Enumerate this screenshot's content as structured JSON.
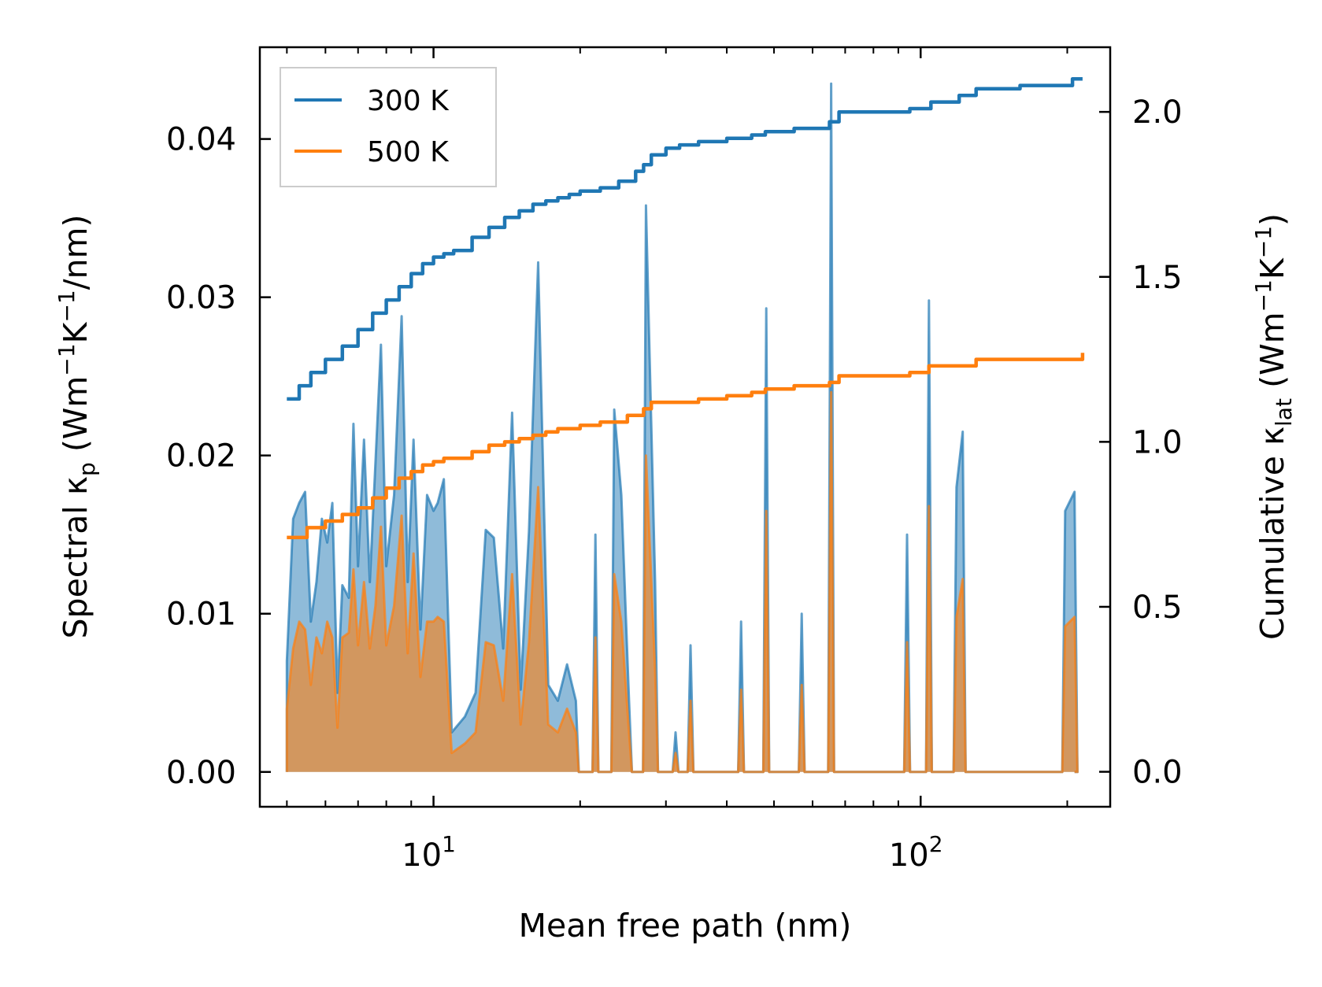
{
  "chart_data": {
    "type": "line",
    "x_scale": "log",
    "xlabel": "Mean free path (nm)",
    "ylabel_left": {
      "main": "Spectral κ",
      "sub": "p",
      "unit_pre": " (Wm",
      "sup1": "−1",
      "mid": "K",
      "sup2": "−1",
      "tail": "/nm)"
    },
    "ylabel_right": {
      "main": "Cumulative κ",
      "sub": "lat",
      "unit_pre": " (Wm",
      "sup1": "−1",
      "mid": "K",
      "sup2": "−1",
      "tail": ")"
    },
    "xlim": [
      4.4,
      245
    ],
    "ylim_left": [
      -0.0022,
      0.0458
    ],
    "ylim_right": [
      -0.106,
      2.196
    ],
    "x_ticks": [
      {
        "value": 10,
        "label": "10",
        "exp": "1"
      },
      {
        "value": 100,
        "label": "10",
        "exp": "2"
      }
    ],
    "y_ticks_left": [
      {
        "value": 0.0,
        "label": "0.00"
      },
      {
        "value": 0.01,
        "label": "0.01"
      },
      {
        "value": 0.02,
        "label": "0.02"
      },
      {
        "value": 0.03,
        "label": "0.03"
      },
      {
        "value": 0.04,
        "label": "0.04"
      }
    ],
    "y_ticks_right": [
      {
        "value": 0.0,
        "label": "0.0"
      },
      {
        "value": 0.5,
        "label": "0.5"
      },
      {
        "value": 1.0,
        "label": "1.0"
      },
      {
        "value": 1.5,
        "label": "1.5"
      },
      {
        "value": 2.0,
        "label": "2.0"
      }
    ],
    "legend": {
      "placement": "top-left",
      "entries": [
        {
          "label": "300 K",
          "color": "#1f77b4"
        },
        {
          "label": "500 K",
          "color": "#ff7f0e"
        }
      ]
    },
    "series": [
      {
        "name": "300 K",
        "color": "#1f77b4",
        "cumulative": [
          [
            5.0,
            1.13
          ],
          [
            5.3,
            1.17
          ],
          [
            5.6,
            1.21
          ],
          [
            6.0,
            1.25
          ],
          [
            6.5,
            1.29
          ],
          [
            7.0,
            1.34
          ],
          [
            7.5,
            1.39
          ],
          [
            8.0,
            1.43
          ],
          [
            8.5,
            1.47
          ],
          [
            9.0,
            1.51
          ],
          [
            9.5,
            1.54
          ],
          [
            10.0,
            1.56
          ],
          [
            10.5,
            1.57
          ],
          [
            11.0,
            1.58
          ],
          [
            12.0,
            1.62
          ],
          [
            13.0,
            1.65
          ],
          [
            14.0,
            1.68
          ],
          [
            15.0,
            1.7
          ],
          [
            16.0,
            1.72
          ],
          [
            17.0,
            1.73
          ],
          [
            18.0,
            1.74
          ],
          [
            19.0,
            1.75
          ],
          [
            20.0,
            1.76
          ],
          [
            22.0,
            1.77
          ],
          [
            24.0,
            1.79
          ],
          [
            26.0,
            1.82
          ],
          [
            27.0,
            1.84
          ],
          [
            28.0,
            1.87
          ],
          [
            30.0,
            1.89
          ],
          [
            32.0,
            1.9
          ],
          [
            35.0,
            1.91
          ],
          [
            40.0,
            1.92
          ],
          [
            45.0,
            1.93
          ],
          [
            48.0,
            1.94
          ],
          [
            55.0,
            1.95
          ],
          [
            65.0,
            1.97
          ],
          [
            68.0,
            2.0
          ],
          [
            80.0,
            2.0
          ],
          [
            95.0,
            2.01
          ],
          [
            105.0,
            2.03
          ],
          [
            120.0,
            2.05
          ],
          [
            130.0,
            2.07
          ],
          [
            160.0,
            2.08
          ],
          [
            200.0,
            2.08
          ],
          [
            205.0,
            2.1
          ],
          [
            215.0,
            2.1
          ]
        ],
        "spectral_peaks": [
          [
            5.0,
            0.007
          ],
          [
            5.15,
            0.016
          ],
          [
            5.3,
            0.017
          ],
          [
            5.45,
            0.0177
          ],
          [
            5.6,
            0.0095
          ],
          [
            5.75,
            0.012
          ],
          [
            5.9,
            0.016
          ],
          [
            6.05,
            0.0145
          ],
          [
            6.2,
            0.017
          ],
          [
            6.35,
            0.005
          ],
          [
            6.5,
            0.0118
          ],
          [
            6.7,
            0.011
          ],
          [
            6.85,
            0.022
          ],
          [
            7.0,
            0.013
          ],
          [
            7.2,
            0.021
          ],
          [
            7.4,
            0.012
          ],
          [
            7.6,
            0.0195
          ],
          [
            7.8,
            0.027
          ],
          [
            8.0,
            0.013
          ],
          [
            8.3,
            0.0175
          ],
          [
            8.6,
            0.0288
          ],
          [
            8.85,
            0.012
          ],
          [
            9.1,
            0.021
          ],
          [
            9.4,
            0.009
          ],
          [
            9.7,
            0.0175
          ],
          [
            10.0,
            0.0165
          ],
          [
            10.2,
            0.017
          ],
          [
            10.5,
            0.0185
          ],
          [
            10.9,
            0.0025
          ],
          [
            11.6,
            0.0035
          ],
          [
            12.2,
            0.005
          ],
          [
            12.8,
            0.0153
          ],
          [
            13.3,
            0.0148
          ],
          [
            13.9,
            0.0078
          ],
          [
            14.5,
            0.0227
          ],
          [
            15.1,
            0.0052
          ],
          [
            15.7,
            0.0152
          ],
          [
            16.4,
            0.0322
          ],
          [
            17.2,
            0.0055
          ],
          [
            18.0,
            0.0045
          ],
          [
            18.8,
            0.0068
          ],
          [
            19.6,
            0.0045
          ],
          [
            21.5,
            0.015
          ],
          [
            23.5,
            0.0229
          ],
          [
            24.3,
            0.0175
          ],
          [
            25.2,
            0.0045
          ],
          [
            27.3,
            0.0358
          ],
          [
            28.5,
            0.012
          ],
          [
            31.4,
            0.0025
          ],
          [
            33.7,
            0.008
          ],
          [
            42.8,
            0.0095
          ],
          [
            48.2,
            0.0293
          ],
          [
            57.0,
            0.01
          ],
          [
            65.5,
            0.0435
          ],
          [
            93.8,
            0.015
          ],
          [
            104.0,
            0.0298
          ],
          [
            118.5,
            0.018
          ],
          [
            122.0,
            0.0215
          ],
          [
            198.0,
            0.0165
          ],
          [
            207.0,
            0.0177
          ]
        ]
      },
      {
        "name": "500 K",
        "color": "#ff7f0e",
        "cumulative": [
          [
            5.0,
            0.71
          ],
          [
            5.5,
            0.74
          ],
          [
            6.0,
            0.76
          ],
          [
            6.5,
            0.78
          ],
          [
            7.0,
            0.8
          ],
          [
            7.5,
            0.83
          ],
          [
            8.0,
            0.86
          ],
          [
            8.5,
            0.89
          ],
          [
            9.0,
            0.91
          ],
          [
            9.5,
            0.93
          ],
          [
            10.0,
            0.94
          ],
          [
            10.5,
            0.95
          ],
          [
            11.0,
            0.95
          ],
          [
            12.0,
            0.97
          ],
          [
            13.0,
            0.99
          ],
          [
            14.0,
            1.0
          ],
          [
            15.0,
            1.01
          ],
          [
            16.0,
            1.02
          ],
          [
            17.0,
            1.03
          ],
          [
            18.0,
            1.04
          ],
          [
            20.0,
            1.05
          ],
          [
            22.0,
            1.06
          ],
          [
            25.0,
            1.08
          ],
          [
            27.0,
            1.1
          ],
          [
            28.0,
            1.12
          ],
          [
            32.0,
            1.12
          ],
          [
            35.0,
            1.13
          ],
          [
            40.0,
            1.14
          ],
          [
            45.0,
            1.15
          ],
          [
            48.0,
            1.16
          ],
          [
            55.0,
            1.17
          ],
          [
            65.0,
            1.18
          ],
          [
            68.0,
            1.2
          ],
          [
            80.0,
            1.2
          ],
          [
            95.0,
            1.21
          ],
          [
            104.0,
            1.23
          ],
          [
            120.0,
            1.23
          ],
          [
            130.0,
            1.25
          ],
          [
            200.0,
            1.25
          ],
          [
            215.0,
            1.27
          ]
        ],
        "spectral_peaks": [
          [
            5.0,
            0.004
          ],
          [
            5.15,
            0.0078
          ],
          [
            5.3,
            0.0095
          ],
          [
            5.45,
            0.009
          ],
          [
            5.6,
            0.0055
          ],
          [
            5.75,
            0.0085
          ],
          [
            5.9,
            0.0075
          ],
          [
            6.05,
            0.0095
          ],
          [
            6.2,
            0.0085
          ],
          [
            6.35,
            0.0028
          ],
          [
            6.5,
            0.0085
          ],
          [
            6.7,
            0.0088
          ],
          [
            6.85,
            0.0128
          ],
          [
            7.0,
            0.008
          ],
          [
            7.2,
            0.012
          ],
          [
            7.4,
            0.0078
          ],
          [
            7.6,
            0.0105
          ],
          [
            7.8,
            0.0155
          ],
          [
            8.0,
            0.008
          ],
          [
            8.3,
            0.0105
          ],
          [
            8.6,
            0.0162
          ],
          [
            8.85,
            0.0075
          ],
          [
            9.1,
            0.0138
          ],
          [
            9.4,
            0.006
          ],
          [
            9.7,
            0.0095
          ],
          [
            10.0,
            0.0095
          ],
          [
            10.2,
            0.0098
          ],
          [
            10.5,
            0.0095
          ],
          [
            10.9,
            0.0012
          ],
          [
            11.6,
            0.0018
          ],
          [
            12.2,
            0.0025
          ],
          [
            12.8,
            0.0082
          ],
          [
            13.3,
            0.008
          ],
          [
            13.9,
            0.0045
          ],
          [
            14.5,
            0.0125
          ],
          [
            15.1,
            0.003
          ],
          [
            15.7,
            0.0082
          ],
          [
            16.4,
            0.018
          ],
          [
            17.2,
            0.003
          ],
          [
            18.0,
            0.0025
          ],
          [
            18.8,
            0.004
          ],
          [
            19.6,
            0.0025
          ],
          [
            21.5,
            0.0085
          ],
          [
            23.5,
            0.0125
          ],
          [
            24.3,
            0.0095
          ],
          [
            25.2,
            0.0025
          ],
          [
            27.3,
            0.02
          ],
          [
            28.5,
            0.0065
          ],
          [
            31.4,
            0.0012
          ],
          [
            33.7,
            0.0045
          ],
          [
            42.8,
            0.0052
          ],
          [
            48.2,
            0.0165
          ],
          [
            57.0,
            0.0055
          ],
          [
            65.5,
            0.024
          ],
          [
            93.8,
            0.0082
          ],
          [
            104.0,
            0.0168
          ],
          [
            118.5,
            0.0098
          ],
          [
            122.0,
            0.0122
          ],
          [
            198.0,
            0.0092
          ],
          [
            207.0,
            0.0098
          ]
        ]
      }
    ]
  }
}
